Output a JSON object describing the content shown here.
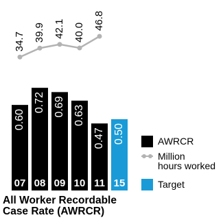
{
  "chart_data": {
    "type": "bar",
    "categories": [
      "07",
      "08",
      "09",
      "10",
      "11",
      "15"
    ],
    "series": [
      {
        "name": "AWRCR",
        "values": [
          0.6,
          0.72,
          0.69,
          0.63,
          0.47,
          null
        ],
        "labels": [
          "0.60",
          "0.72",
          "0.69",
          "0.63",
          "0.47",
          ""
        ],
        "color": "#000000"
      },
      {
        "name": "Target",
        "values": [
          null,
          null,
          null,
          null,
          null,
          0.5
        ],
        "labels": [
          "",
          "",
          "",
          "",
          "",
          "0.50"
        ],
        "color": "#1a9bd7"
      }
    ],
    "line_series": {
      "name": "Million\nhours worked",
      "values": [
        34.7,
        39.9,
        42.1,
        40.0,
        46.8
      ],
      "labels": [
        "34.7",
        "39.9",
        "42.1",
        "40.0",
        "46.8"
      ],
      "color": "#b3b3b3"
    },
    "title": [
      "All Worker Recordable",
      "Case Rate (AWRCR)"
    ],
    "legend": [
      {
        "label": "AWRCR",
        "marker": "square",
        "color": "#000000"
      },
      {
        "label": "Million\nhours worked",
        "marker": "line-dot",
        "color": "#b3b3b3"
      },
      {
        "label": "Target",
        "marker": "square",
        "color": "#1a9bd7"
      }
    ],
    "legend_position": "right",
    "ylim": [
      0,
      0.8
    ]
  }
}
